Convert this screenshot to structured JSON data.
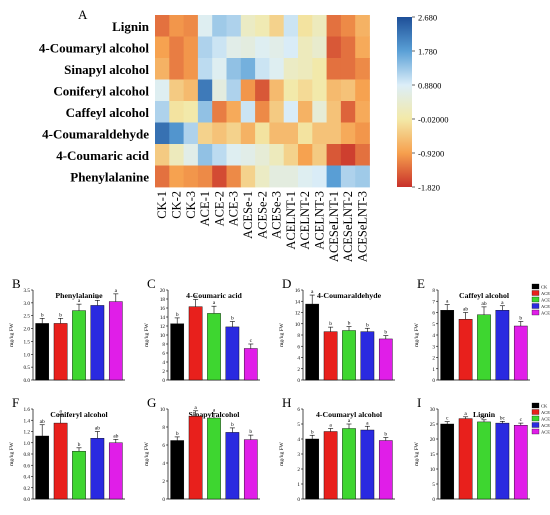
{
  "panel_a": {
    "letter": "A",
    "rows": [
      "Lignin",
      "4-Coumaryl alcohol",
      "Sinapyl alcohol",
      "Coniferyl alcohol",
      "Caffeyl alcohol",
      "4-Coumaraldehyde",
      "4-Coumaric acid",
      "Phenylalanine"
    ],
    "cols": [
      "CK-1",
      "CK-2",
      "CK-3",
      "ACE-1",
      "ACE-2",
      "ACE-3",
      "ACESe-1",
      "ACESe-2",
      "ACESe-3",
      "ACELNT-1",
      "ACELNT-2",
      "ACELNT-3",
      "ACESeLNT-1",
      "ACESeLNT-2",
      "ACESeLNT-3"
    ],
    "colorbar_ticks": [
      "2.680",
      "1.780",
      "0.8800",
      "-0.02000",
      "-0.9200",
      "-1.820"
    ],
    "colorbar_colors": [
      "#1e4f98",
      "#5aa0d6",
      "#dceef8",
      "#f3e9a8",
      "#f6a04e",
      "#c8302a"
    ]
  },
  "groups": [
    "CK",
    "ACE",
    "ACESe",
    "ACELNT",
    "ACESeLNT"
  ],
  "group_colors": [
    "#000000",
    "#e8201c",
    "#3ed630",
    "#2a2ae0",
    "#e01ee8"
  ],
  "ylabel": "mg/kg FW",
  "chart_data": [
    {
      "type": "heatmap",
      "rows": [
        "Lignin",
        "4-Coumaryl alcohol",
        "Sinapyl alcohol",
        "Coniferyl alcohol",
        "Caffeyl alcohol",
        "4-Coumaraldehyde",
        "4-Coumaric acid",
        "Phenylalanine"
      ],
      "cols": [
        "CK-1",
        "CK-2",
        "CK-3",
        "ACE-1",
        "ACE-2",
        "ACE-3",
        "ACESe-1",
        "ACESe-2",
        "ACESe-3",
        "ACELNT-1",
        "ACELNT-2",
        "ACELNT-3",
        "ACESeLNT-1",
        "ACESeLNT-2",
        "ACESeLNT-3"
      ],
      "zlim": [
        -1.82,
        2.68
      ],
      "values": [
        [
          -1.3,
          -1.0,
          -1.1,
          0.8,
          1.3,
          1.2,
          0.3,
          0.1,
          -0.3,
          1.0,
          -0.1,
          0.2,
          -1.3,
          -1.1,
          -0.7
        ],
        [
          -0.9,
          -1.2,
          -1.0,
          1.2,
          1.0,
          0.7,
          0.6,
          0.8,
          0.7,
          0.9,
          0.2,
          0.4,
          -1.5,
          -1.3,
          -0.8
        ],
        [
          -0.7,
          -1.2,
          -1.0,
          1.1,
          0.8,
          1.4,
          1.6,
          1.0,
          0.8,
          0.3,
          0.2,
          0.0,
          -1.3,
          -1.3,
          -1.1
        ],
        [
          0.8,
          -0.4,
          -0.6,
          2.2,
          0.6,
          1.2,
          -1.0,
          -1.5,
          -0.6,
          0.0,
          -0.2,
          0.0,
          -0.6,
          -0.5,
          -0.9
        ],
        [
          1.2,
          -0.1,
          0.0,
          1.4,
          -1.2,
          -0.8,
          1.0,
          -1.1,
          -0.4,
          0.9,
          -0.7,
          0.5,
          -0.5,
          -1.4,
          -0.8
        ],
        [
          2.3,
          1.9,
          1.2,
          -0.3,
          -0.5,
          -0.3,
          -0.7,
          -0.1,
          -0.6,
          -0.6,
          -0.1,
          -0.5,
          -0.5,
          -0.8,
          -1.0
        ],
        [
          -0.4,
          0.2,
          0.7,
          1.4,
          1.1,
          0.8,
          0.7,
          0.5,
          0.2,
          -0.3,
          -0.9,
          -0.4,
          -1.5,
          -1.7,
          -1.3
        ],
        [
          -1.3,
          -0.9,
          -1.0,
          -1.1,
          -1.6,
          -1.1,
          -0.3,
          0.3,
          0.6,
          0.6,
          0.8,
          0.9,
          1.8,
          1.2,
          1.3
        ]
      ]
    },
    {
      "type": "bar",
      "panel": "B",
      "title": "Phenylalanine",
      "ylabel": "mg/kg FW",
      "ylim": [
        0,
        3.5
      ],
      "yticks": [
        "0.0",
        "0.5",
        "1.0",
        "1.5",
        "2.0",
        "2.5",
        "3.0",
        "3.5"
      ],
      "categories": [
        "CK",
        "ACE",
        "ACESe",
        "ACELNT",
        "ACESeLNT"
      ],
      "values": [
        2.2,
        2.2,
        2.7,
        2.9,
        3.05
      ],
      "errors": [
        0.2,
        0.2,
        0.25,
        0.2,
        0.3
      ],
      "letters": [
        "b",
        "b",
        "a",
        "a",
        "a"
      ]
    },
    {
      "type": "bar",
      "panel": "C",
      "title": "4-Coumaric acid",
      "ylabel": "mg/kg FW",
      "ylim": [
        0,
        20
      ],
      "yticks": [
        "0",
        "2",
        "4",
        "6",
        "8",
        "10",
        "12",
        "14",
        "16",
        "18",
        "20"
      ],
      "categories": [
        "CK",
        "ACE",
        "ACESe",
        "ACELNT",
        "ACESeLNT"
      ],
      "values": [
        12.5,
        16.3,
        14.8,
        11.8,
        7.0
      ],
      "errors": [
        1.3,
        1.6,
        1.6,
        1.2,
        1.0
      ],
      "letters": [
        "b",
        "a",
        "a",
        "b",
        "c"
      ]
    },
    {
      "type": "bar",
      "panel": "D",
      "title": "4-Coumaraldehyde",
      "ylabel": "mg/kg FW",
      "ylim": [
        0,
        16
      ],
      "yticks": [
        "0",
        "2",
        "4",
        "6",
        "8",
        "10",
        "12",
        "14",
        "16"
      ],
      "categories": [
        "CK",
        "ACE",
        "ACESe",
        "ACELNT",
        "ACESeLNT"
      ],
      "values": [
        13.5,
        8.6,
        8.8,
        8.6,
        7.3
      ],
      "errors": [
        1.6,
        0.8,
        0.7,
        0.6,
        0.6
      ],
      "letters": [
        "a",
        "b",
        "b",
        "b",
        "b"
      ]
    },
    {
      "type": "bar",
      "panel": "E",
      "title": "Caffeyl alcohol",
      "ylabel": "mg/kg FW",
      "ylim": [
        0,
        8
      ],
      "yticks": [
        "0",
        "1",
        "2",
        "3",
        "4",
        "5",
        "6",
        "7",
        "8"
      ],
      "categories": [
        "CK",
        "ACE",
        "ACESe",
        "ACELNT",
        "ACESeLNT"
      ],
      "values": [
        6.2,
        5.4,
        5.8,
        6.2,
        4.8
      ],
      "errors": [
        0.5,
        0.6,
        0.7,
        0.4,
        0.4
      ],
      "letters": [
        "a",
        "ab",
        "ab",
        "a",
        "b"
      ]
    },
    {
      "type": "bar",
      "panel": "F",
      "title": "Coniferyl alcohol",
      "ylabel": "mg/kg FW",
      "ylim": [
        0,
        1.6
      ],
      "yticks": [
        "0.0",
        "0.2",
        "0.4",
        "0.6",
        "0.8",
        "1.0",
        "1.2",
        "1.4",
        "1.6"
      ],
      "categories": [
        "CK",
        "ACE",
        "ACESe",
        "ACELNT",
        "ACESeLNT"
      ],
      "values": [
        1.12,
        1.35,
        0.85,
        1.08,
        1.0
      ],
      "errors": [
        0.2,
        0.15,
        0.06,
        0.12,
        0.06
      ],
      "letters": [
        "ab",
        "a",
        "b",
        "ab",
        "ab"
      ]
    },
    {
      "type": "bar",
      "panel": "G",
      "title": "Sinapyl alcohol",
      "ylabel": "mg/kg FW",
      "ylim": [
        0,
        10
      ],
      "yticks": [
        "0",
        "2",
        "4",
        "6",
        "8",
        "10"
      ],
      "categories": [
        "CK",
        "ACE",
        "ACESe",
        "ACELNT",
        "ACESeLNT"
      ],
      "values": [
        6.5,
        9.2,
        9.0,
        7.4,
        6.6
      ],
      "errors": [
        0.4,
        0.6,
        0.5,
        0.5,
        0.5
      ],
      "letters": [
        "b",
        "a",
        "a",
        "b",
        "b"
      ]
    },
    {
      "type": "bar",
      "panel": "H",
      "title": "4-Coumaryl alcohol",
      "ylabel": "mg/kg FW",
      "ylim": [
        0,
        6
      ],
      "yticks": [
        "0",
        "1",
        "2",
        "3",
        "4",
        "5",
        "6"
      ],
      "categories": [
        "CK",
        "ACE",
        "ACESe",
        "ACELNT",
        "ACESeLNT"
      ],
      "values": [
        4.0,
        4.5,
        4.7,
        4.6,
        3.9
      ],
      "errors": [
        0.25,
        0.2,
        0.3,
        0.25,
        0.2
      ],
      "letters": [
        "b",
        "a",
        "a",
        "a",
        "b"
      ]
    },
    {
      "type": "bar",
      "panel": "I",
      "title": "Lignin",
      "ylabel": "mg/kg FW",
      "ylim": [
        0,
        30
      ],
      "yticks": [
        "0",
        "5",
        "10",
        "15",
        "20",
        "25",
        "30"
      ],
      "categories": [
        "CK",
        "ACE",
        "ACESe",
        "ACELNT",
        "ACESeLNT"
      ],
      "values": [
        25.0,
        26.8,
        25.7,
        25.3,
        24.6
      ],
      "errors": [
        0.8,
        0.6,
        0.7,
        0.6,
        0.7
      ],
      "letters": [
        "c",
        "a",
        "b",
        "bc",
        "c"
      ]
    }
  ]
}
